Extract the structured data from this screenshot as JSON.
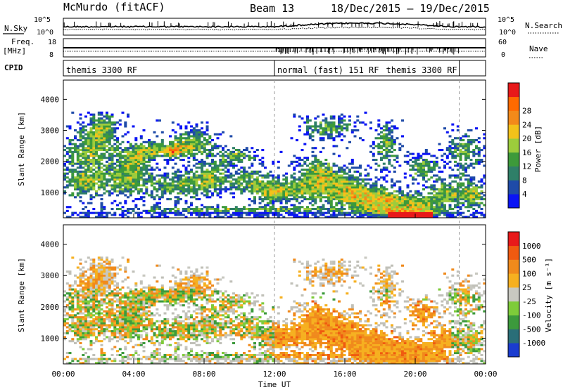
{
  "header": {
    "station": "McMurdo (fitACF)",
    "beam": "Beam 13",
    "date_range": "18/Dec/2015 – 19/Dec/2015"
  },
  "top_panels": {
    "nsky_label": "N.Sky",
    "nsky_ticks": [
      "10^5",
      "10^0"
    ],
    "nsearch_label": "N.Search",
    "nsearch_ticks": [
      "10^5",
      "10^0"
    ],
    "freq_label": "Freq.",
    "freq_unit": "[MHz]",
    "freq_ticks": [
      "18",
      "8"
    ],
    "nave_label": "Nave",
    "nave_ticks": [
      "60",
      "0"
    ],
    "cpid_label": "CPID",
    "cpid_segments": [
      {
        "label": "themis 3300 RF",
        "start_h": 0,
        "end_h": 12
      },
      {
        "label": "normal (fast) 151 RF",
        "start_h": 12,
        "end_h": 22.5
      },
      {
        "label": "themis 3300 RF",
        "start_h": 22.5,
        "end_h": 24
      }
    ]
  },
  "chart_data": [
    {
      "type": "heatmap",
      "name": "power",
      "ylabel": "Slant Range [km]",
      "yticks": [
        1000,
        2000,
        3000,
        4000
      ],
      "ylim": [
        180,
        4620
      ],
      "xlim": [
        0,
        24
      ],
      "colorbar_label": "Power [dB]",
      "colorbar_ticks": [
        "4",
        "8",
        "12",
        "16",
        "20",
        "24",
        "28"
      ],
      "colors": [
        "#0a14f5",
        "#1f4ba8",
        "#2f7f68",
        "#3d9a3a",
        "#9ccc3c",
        "#f3c21a",
        "#f38a1a",
        "#ff6a00",
        "#e8191a"
      ]
    },
    {
      "type": "heatmap",
      "name": "velocity",
      "ylabel": "Slant Range [km]",
      "yticks": [
        1000,
        2000,
        3000,
        4000
      ],
      "ylim": [
        180,
        4620
      ],
      "xlim": [
        0,
        24
      ],
      "xlabel": "Time UT",
      "xticks": [
        "00:00",
        "04:00",
        "08:00",
        "12:00",
        "16:00",
        "20:00",
        "00:00"
      ],
      "colorbar_label": "Velocity [m s⁻¹]",
      "colorbar_ticks": [
        "1000",
        "500",
        "100",
        "25",
        "-25",
        "-100",
        "-500",
        "-1000"
      ],
      "colors": [
        "#1a3ccf",
        "#2a6e78",
        "#3c9a3c",
        "#7ecb3a",
        "#c8c8c0",
        "#f6b020",
        "#f08a1c",
        "#f05a10",
        "#e8191a"
      ],
      "ground_scatter_color": "#c0c0b8"
    }
  ]
}
